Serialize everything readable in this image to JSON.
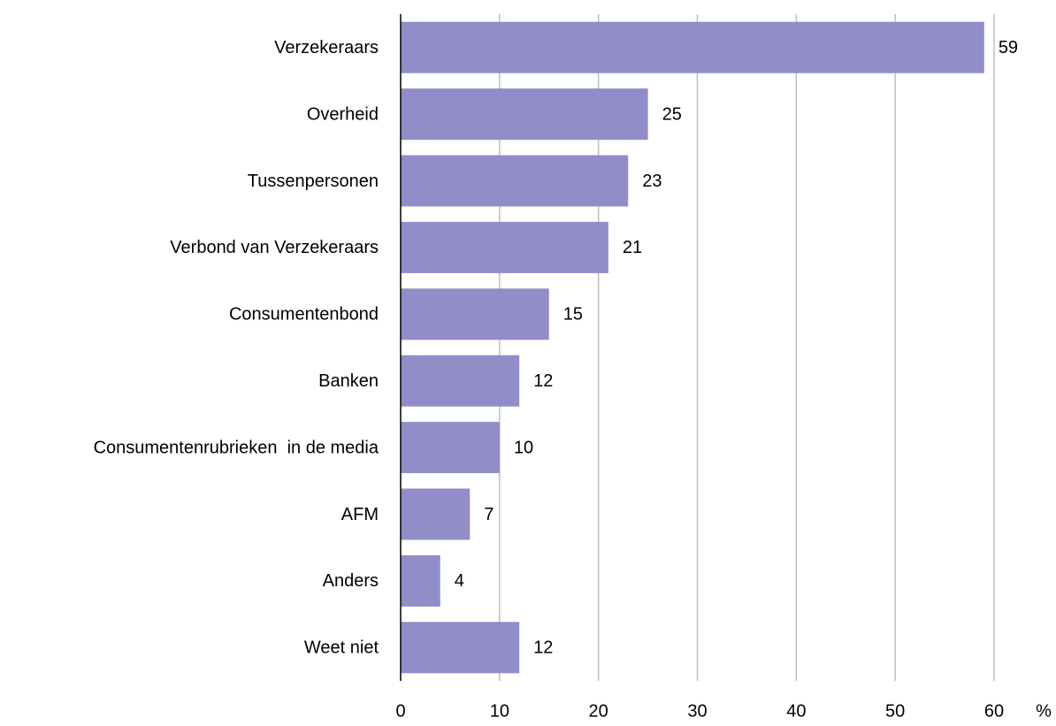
{
  "chart_data": {
    "type": "bar",
    "orientation": "horizontal",
    "categories": [
      "Verzekeraars",
      "Overheid",
      "Tussenpersonen",
      "Verbond van Verzekeraars",
      "Consumentenbond",
      "Banken",
      "Consumentenrubrieken  in de media",
      "AFM",
      "Anders",
      "Weet niet"
    ],
    "values": [
      59,
      25,
      23,
      21,
      15,
      12,
      10,
      7,
      4,
      12
    ],
    "color": "#918dc9",
    "xlabel": "%",
    "xlim": [
      0,
      60
    ],
    "xticks": [
      0,
      10,
      20,
      30,
      40,
      50,
      60
    ],
    "grid": true
  }
}
